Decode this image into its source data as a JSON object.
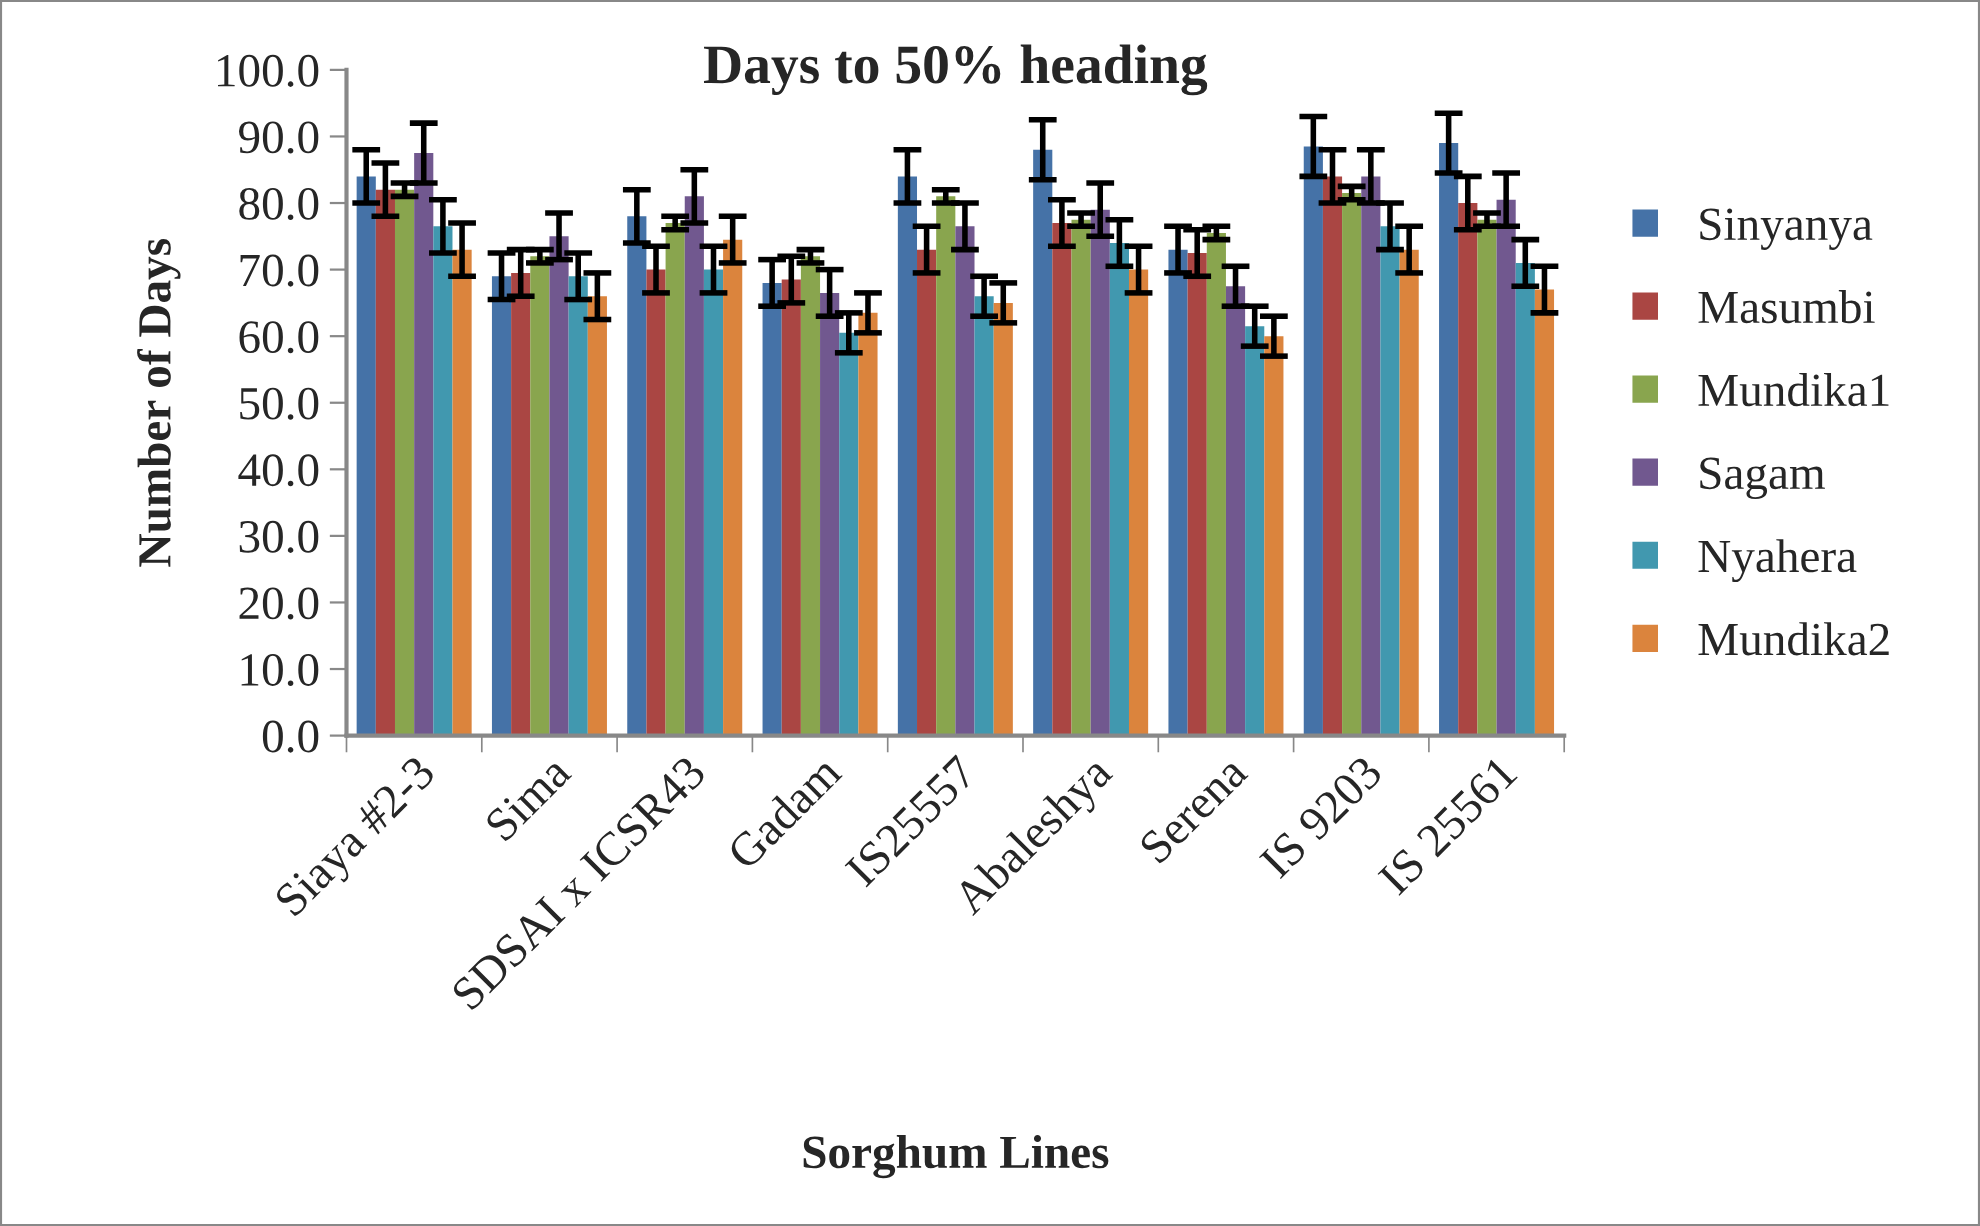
{
  "chart_data": {
    "type": "bar",
    "title": "Days to 50% heading",
    "xlabel": "Sorghum Lines",
    "ylabel": "Number of Days",
    "categories": [
      "Siaya #2-3",
      "Sima",
      "SDSAI x ICSR43",
      "Gadam",
      "IS25557",
      "Abaleshya",
      "Serena",
      "IS 9203",
      "IS 25561"
    ],
    "series": [
      {
        "name": "Sinyanya",
        "color": "#4572a7",
        "values": [
          84,
          69,
          78,
          68,
          84,
          88,
          73,
          88.5,
          89
        ],
        "errors": [
          4,
          3.5,
          4,
          3.5,
          4,
          4.5,
          3.5,
          4.5,
          4.5
        ]
      },
      {
        "name": "Masumbi",
        "color": "#aa4643",
        "values": [
          82,
          69.5,
          70,
          68.5,
          73,
          77,
          72.5,
          84,
          80
        ],
        "errors": [
          4,
          3.5,
          3.5,
          3.5,
          3.5,
          3.5,
          3.5,
          4,
          4
        ]
      },
      {
        "name": "Mundika1",
        "color": "#89a54e",
        "values": [
          82,
          72,
          77,
          72,
          81,
          77.5,
          75.5,
          81.5,
          77.5
        ],
        "errors": [
          1,
          1,
          1,
          1,
          1,
          1,
          1,
          1,
          1
        ]
      },
      {
        "name": "Sagam",
        "color": "#71588f",
        "values": [
          87.5,
          75,
          81,
          66.5,
          76.5,
          79,
          67.5,
          84,
          80.5
        ],
        "errors": [
          4.5,
          3.5,
          4,
          3.5,
          3.5,
          4,
          3,
          4,
          4
        ]
      },
      {
        "name": "Nyahera",
        "color": "#4198af",
        "values": [
          76.5,
          69,
          70,
          60.5,
          66,
          74,
          61.5,
          76.5,
          71
        ],
        "errors": [
          4,
          3.5,
          3.5,
          3,
          3,
          3.5,
          3,
          3.5,
          3.5
        ]
      },
      {
        "name": "Mundika2",
        "color": "#db843d",
        "values": [
          73,
          66,
          74.5,
          63.5,
          65,
          70,
          60,
          73,
          67
        ],
        "errors": [
          4,
          3.5,
          3.5,
          3,
          3,
          3.5,
          3,
          3.5,
          3.5
        ]
      }
    ],
    "ylim": [
      0,
      100
    ],
    "yticks": [
      {
        "value": 0,
        "label": "0.0"
      },
      {
        "value": 10,
        "label": "10.0"
      },
      {
        "value": 20,
        "label": "20.0"
      },
      {
        "value": 30,
        "label": "30.0"
      },
      {
        "value": 40,
        "label": "40.0"
      },
      {
        "value": 50,
        "label": "50.0"
      },
      {
        "value": 60,
        "label": "60.0"
      },
      {
        "value": 70,
        "label": "70.0"
      },
      {
        "value": 80,
        "label": "80.0"
      },
      {
        "value": 90,
        "label": "90.0"
      },
      {
        "value": 100,
        "label": "100.0"
      }
    ],
    "grid": false,
    "legend": "right"
  }
}
